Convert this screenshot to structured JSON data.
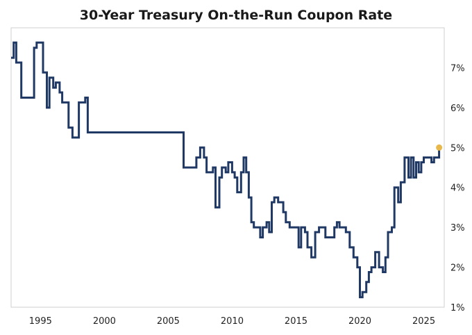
{
  "chart_data": {
    "type": "line",
    "title": "30-Year Treasury On-the-Run Coupon Rate",
    "xlabel": "",
    "ylabel": "",
    "xlim": [
      1992.7,
      2026.6
    ],
    "ylim": [
      1.0,
      8.0
    ],
    "x_ticks": [
      1995,
      2000,
      2005,
      2010,
      2015,
      2020,
      2025
    ],
    "x_tick_labels": [
      "1995",
      "2000",
      "2005",
      "2010",
      "2015",
      "2020",
      "2025"
    ],
    "y_ticks": [
      1,
      2,
      3,
      4,
      5,
      6,
      7
    ],
    "y_tick_labels": [
      "1%",
      "2%",
      "3%",
      "4%",
      "5%",
      "6%",
      "7%"
    ],
    "y_axis_position": "right",
    "grid": false,
    "step": "post",
    "series": [
      {
        "color": "#1f3864",
        "x": [
          1992.7,
          1992.9,
          1993.1,
          1993.5,
          1994.5,
          1994.7,
          1995.2,
          1995.5,
          1995.7,
          1996.0,
          1996.2,
          1996.5,
          1996.7,
          1997.2,
          1997.5,
          1997.8,
          1998.0,
          1998.5,
          1998.7,
          1999.5,
          1999.7,
          2000.2,
          2001.2,
          2006.2,
          2006.5,
          2007.2,
          2007.5,
          2007.8,
          2008.0,
          2008.5,
          2008.7,
          2009.0,
          2009.2,
          2009.5,
          2009.7,
          2010.0,
          2010.2,
          2010.4,
          2010.7,
          2010.9,
          2011.1,
          2011.3,
          2011.5,
          2011.7,
          2012.2,
          2012.4,
          2012.7,
          2012.9,
          2013.1,
          2013.3,
          2013.6,
          2014.0,
          2014.2,
          2014.5,
          2015.0,
          2015.2,
          2015.4,
          2015.7,
          2015.9,
          2016.2,
          2016.5,
          2016.8,
          2017.0,
          2017.3,
          2017.6,
          2018.0,
          2018.2,
          2018.4,
          2018.6,
          2018.9,
          2019.2,
          2019.5,
          2019.8,
          2020.0,
          2020.2,
          2020.5,
          2020.7,
          2020.9,
          2021.2,
          2021.5,
          2021.8,
          2022.0,
          2022.2,
          2022.5,
          2022.7,
          2023.0,
          2023.2,
          2023.5,
          2023.8,
          2024.0,
          2024.2,
          2024.4,
          2024.6,
          2024.8,
          2025.0,
          2025.3,
          2025.6,
          2025.8,
          2026.0,
          2026.2
        ],
        "y": [
          7.25,
          7.63,
          7.13,
          6.25,
          7.5,
          7.63,
          6.88,
          6.0,
          6.75,
          6.5,
          6.63,
          6.38,
          6.13,
          5.5,
          5.25,
          5.25,
          6.13,
          6.25,
          5.38,
          5.38,
          5.38,
          5.38,
          5.38,
          4.5,
          4.5,
          4.75,
          5.0,
          4.75,
          4.38,
          4.5,
          3.5,
          4.25,
          4.5,
          4.38,
          4.63,
          4.38,
          4.25,
          3.88,
          4.38,
          4.75,
          4.38,
          3.75,
          3.13,
          3.0,
          2.75,
          3.0,
          3.13,
          2.88,
          3.63,
          3.75,
          3.63,
          3.38,
          3.13,
          3.0,
          3.0,
          2.5,
          3.0,
          2.88,
          2.5,
          2.25,
          2.88,
          3.0,
          3.0,
          2.75,
          2.75,
          3.0,
          3.13,
          3.0,
          3.0,
          2.88,
          2.5,
          2.25,
          2.0,
          1.25,
          1.38,
          1.63,
          1.88,
          2.0,
          2.38,
          2.0,
          1.88,
          2.25,
          2.88,
          3.0,
          4.0,
          3.63,
          4.13,
          4.75,
          4.25,
          4.75,
          4.25,
          4.63,
          4.38,
          4.63,
          4.75,
          4.75,
          4.63,
          4.75,
          4.75,
          5.0
        ]
      }
    ],
    "end_marker": {
      "x": 2026.2,
      "y": 5.0,
      "color": "#e8b84a"
    }
  }
}
